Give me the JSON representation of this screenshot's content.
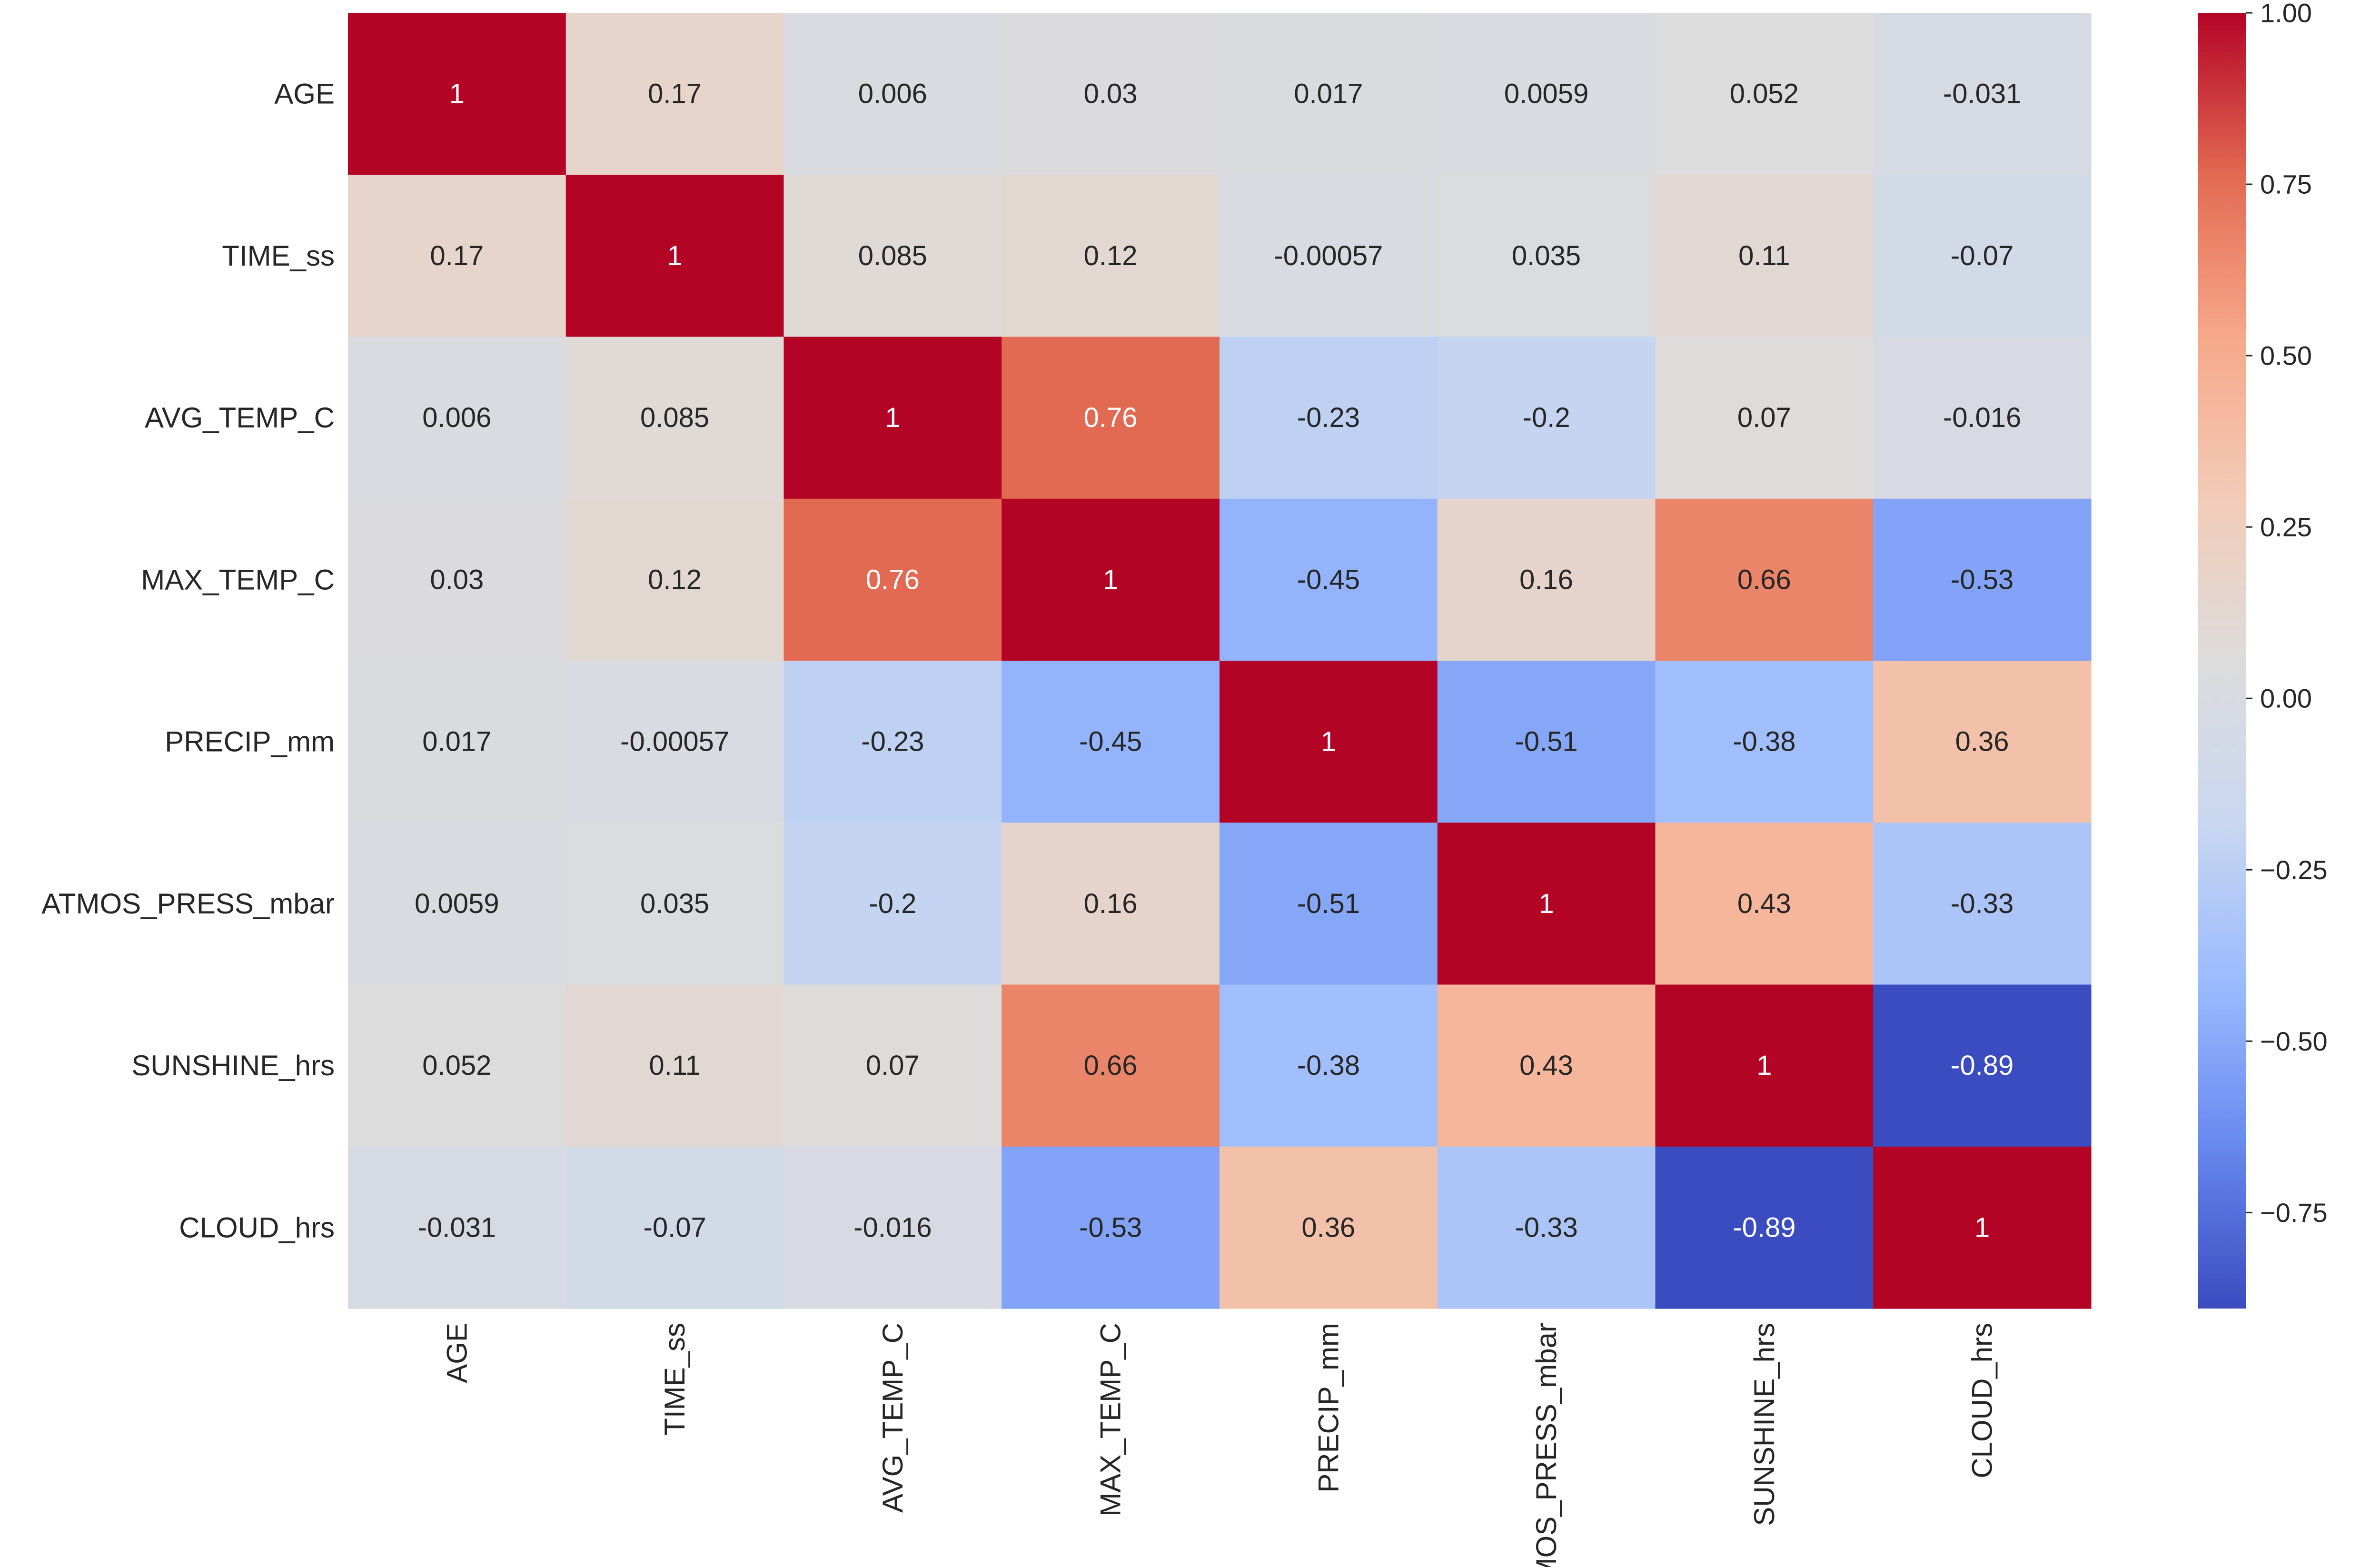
{
  "chart_data": {
    "type": "heatmap",
    "title": "",
    "xlabel": "",
    "ylabel": "",
    "row_labels": [
      "AGE",
      "TIME_ss",
      "AVG_TEMP_C",
      "MAX_TEMP_C",
      "PRECIP_mm",
      "ATMOS_PRESS_mbar",
      "SUNSHINE_hrs",
      "CLOUD_hrs"
    ],
    "col_labels": [
      "AGE",
      "TIME_ss",
      "AVG_TEMP_C",
      "MAX_TEMP_C",
      "PRECIP_mm",
      "ATMOS_PRESS_mbar",
      "SUNSHINE_hrs",
      "CLOUD_hrs"
    ],
    "values": [
      [
        1,
        0.17,
        0.006,
        0.03,
        0.017,
        0.0059,
        0.052,
        -0.031
      ],
      [
        0.17,
        1,
        0.085,
        0.12,
        -0.00057,
        0.035,
        0.11,
        -0.07
      ],
      [
        0.006,
        0.085,
        1,
        0.76,
        -0.23,
        -0.2,
        0.07,
        -0.016
      ],
      [
        0.03,
        0.12,
        0.76,
        1,
        -0.45,
        0.16,
        0.66,
        -0.53
      ],
      [
        0.017,
        -0.00057,
        -0.23,
        -0.45,
        1,
        -0.51,
        -0.38,
        0.36
      ],
      [
        0.0059,
        0.035,
        -0.2,
        0.16,
        -0.51,
        1,
        0.43,
        -0.33
      ],
      [
        0.052,
        0.11,
        0.07,
        0.66,
        -0.38,
        0.43,
        1,
        -0.89
      ],
      [
        -0.031,
        -0.07,
        -0.016,
        -0.53,
        0.36,
        -0.33,
        -0.89,
        1
      ]
    ],
    "annotations": [
      [
        "1",
        "0.17",
        "0.006",
        "0.03",
        "0.017",
        "0.0059",
        "0.052",
        "-0.031"
      ],
      [
        "0.17",
        "1",
        "0.085",
        "0.12",
        "-0.00057",
        "0.035",
        "0.11",
        "-0.07"
      ],
      [
        "0.006",
        "0.085",
        "1",
        "0.76",
        "-0.23",
        "-0.2",
        "0.07",
        "-0.016"
      ],
      [
        "0.03",
        "0.12",
        "0.76",
        "1",
        "-0.45",
        "0.16",
        "0.66",
        "-0.53"
      ],
      [
        "0.017",
        "-0.00057",
        "-0.23",
        "-0.45",
        "1",
        "-0.51",
        "-0.38",
        "0.36"
      ],
      [
        "0.0059",
        "0.035",
        "-0.2",
        "0.16",
        "-0.51",
        "1",
        "0.43",
        "-0.33"
      ],
      [
        "0.052",
        "0.11",
        "0.07",
        "0.66",
        "-0.38",
        "0.43",
        "1",
        "-0.89"
      ],
      [
        "-0.031",
        "-0.07",
        "-0.016",
        "-0.53",
        "0.36",
        "-0.33",
        "-0.89",
        "1"
      ]
    ],
    "colormap": "coolwarm",
    "colormap_stops": [
      "#3b4cc0",
      "#6788ee",
      "#9abbff",
      "#c9d7f0",
      "#dddcdc",
      "#f2cbb7",
      "#f7a889",
      "#e26952",
      "#b40426"
    ],
    "vmin": -0.89,
    "vmax": 1,
    "colorbar": {
      "ticks": [
        1,
        0.75,
        0.5,
        0.25,
        0,
        -0.25,
        -0.5,
        -0.75
      ],
      "tick_labels": [
        "1.00",
        "0.75",
        "0.50",
        "0.25",
        "0.00",
        "−0.25",
        "−0.50",
        "−0.75"
      ]
    }
  }
}
